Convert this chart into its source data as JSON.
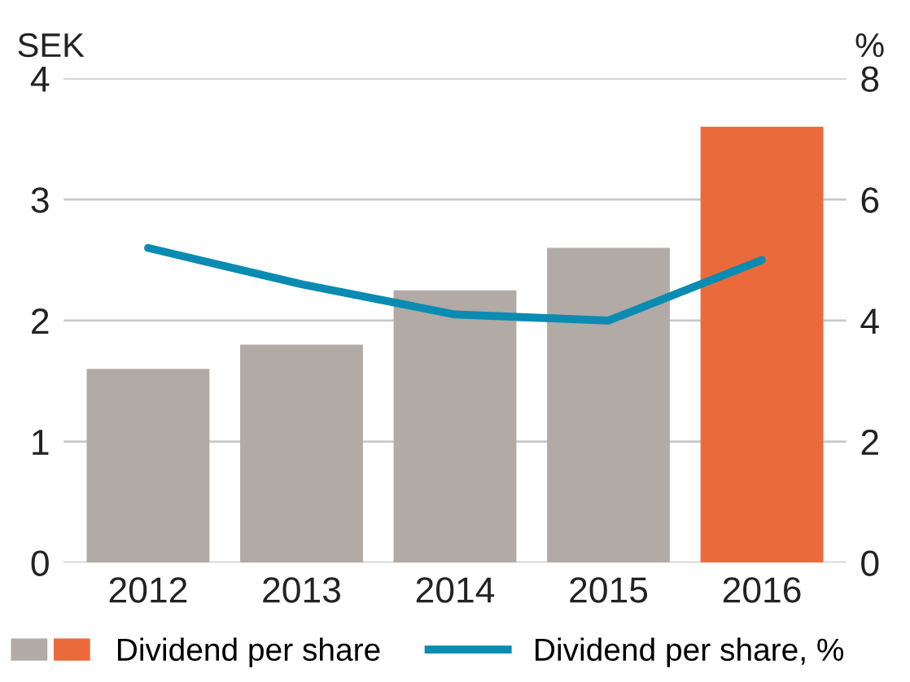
{
  "chart_data": {
    "type": "bar",
    "categories": [
      "2012",
      "2013",
      "2014",
      "2015",
      "2016"
    ],
    "ylabel": "SEK",
    "y2label": "%",
    "series": [
      {
        "name": "Dividend per share",
        "colors": [
          "#b1aaa5",
          "#b1aaa5",
          "#b1aaa5",
          "#b1aaa5",
          "#eb6a3b"
        ],
        "values": [
          1.6,
          1.8,
          2.25,
          2.6,
          3.6
        ]
      },
      {
        "name": "Dividend per share, %",
        "type": "line",
        "axis": "y2",
        "color": "#0a8bb2",
        "values": [
          5.2,
          4.6,
          4.1,
          4.0,
          5.0
        ]
      }
    ],
    "ylim": [
      0,
      4
    ],
    "yticks": [
      0,
      1,
      2,
      3,
      4
    ],
    "y2lim": [
      0,
      8
    ],
    "y2ticks": [
      0,
      2,
      4,
      6,
      8
    ],
    "grid": "y",
    "legend": "bottom",
    "marker": "none",
    "line_style": "solid"
  }
}
